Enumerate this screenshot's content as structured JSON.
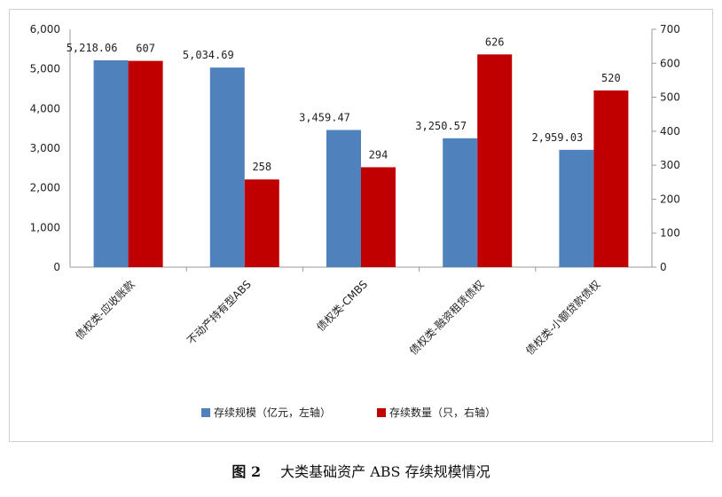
{
  "chart_data": {
    "type": "bar",
    "categories": [
      "债权类-应收账款",
      "不动产持有型ABS",
      "债权类-CMBS",
      "债权类-融资租赁债权",
      "债权类-小额贷款债权"
    ],
    "series": [
      {
        "name": "存续规模（亿元，左轴）",
        "axis": "left",
        "color": "#4f81bd",
        "values": [
          5218.06,
          5034.69,
          3459.47,
          3250.57,
          2959.03
        ],
        "labels": [
          "5,218.06",
          "5,034.69",
          "3,459.47",
          "3,250.57",
          "2,959.03"
        ]
      },
      {
        "name": "存续数量（只，右轴）",
        "axis": "right",
        "color": "#c00000",
        "values": [
          607,
          258,
          294,
          626,
          520
        ],
        "labels": [
          "607",
          "258",
          "294",
          "626",
          "520"
        ]
      }
    ],
    "left_axis": {
      "ylim": [
        0,
        6000
      ],
      "ticks": [
        "0",
        "1,000",
        "2,000",
        "3,000",
        "4,000",
        "5,000",
        "6,000"
      ]
    },
    "right_axis": {
      "ylim": [
        0,
        700
      ],
      "ticks": [
        "0",
        "100",
        "200",
        "300",
        "400",
        "500",
        "600",
        "700"
      ]
    },
    "grid": false,
    "legend": "bottom"
  },
  "caption": {
    "figure_no": "图 2",
    "title": "大类基础资产 ABS 存续规模情况"
  }
}
